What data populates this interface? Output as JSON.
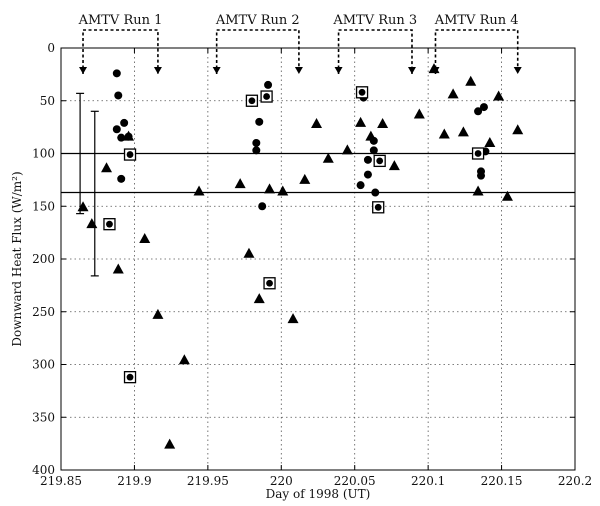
{
  "chart_data": {
    "type": "scatter",
    "title": "",
    "xlabel": "Day of 1998 (UT)",
    "ylabel": "Downward Heat Flux (W/m²)",
    "xlim": [
      219.85,
      220.2
    ],
    "ylim": [
      0,
      400
    ],
    "y_inverted": true,
    "grid": true,
    "x_ticks": [
      "219.85",
      "219.9",
      "219.95",
      "220",
      "220.05",
      "220.1",
      "220.15",
      "220.2"
    ],
    "x_tick_values": [
      219.85,
      219.9,
      219.95,
      220.0,
      220.05,
      220.1,
      220.15,
      220.2
    ],
    "y_ticks": [
      "0",
      "50",
      "100",
      "150",
      "200",
      "250",
      "300",
      "350",
      "400"
    ],
    "y_tick_values": [
      0,
      50,
      100,
      150,
      200,
      250,
      300,
      350,
      400
    ],
    "reference_lines": [
      100,
      137
    ],
    "error_bars": [
      {
        "x": 219.863,
        "y_low": 43,
        "y_high": 157
      },
      {
        "x": 219.873,
        "y_low": 60,
        "y_high": 216
      }
    ],
    "runs": [
      {
        "label": "AMTV Run 1",
        "x_start": 219.865,
        "x_end": 219.916
      },
      {
        "label": "AMTV Run 2",
        "x_start": 219.956,
        "x_end": 220.012
      },
      {
        "label": "AMTV Run 3",
        "x_start": 220.039,
        "x_end": 220.089
      },
      {
        "label": "AMTV Run 4",
        "x_start": 220.105,
        "x_end": 220.161
      }
    ],
    "series": [
      {
        "marker": "triangle",
        "points": [
          [
            219.865,
            151
          ],
          [
            219.871,
            167
          ],
          [
            219.881,
            114
          ],
          [
            219.889,
            210
          ],
          [
            219.896,
            84
          ],
          [
            219.907,
            181
          ],
          [
            219.916,
            253
          ],
          [
            219.924,
            376
          ],
          [
            219.934,
            296
          ],
          [
            219.944,
            136
          ],
          [
            219.972,
            129
          ],
          [
            219.978,
            195
          ],
          [
            219.985,
            238
          ],
          [
            219.992,
            134
          ],
          [
            220.001,
            136
          ],
          [
            220.008,
            257
          ],
          [
            220.016,
            125
          ],
          [
            220.024,
            72
          ],
          [
            220.032,
            105
          ],
          [
            220.045,
            97
          ],
          [
            220.054,
            71
          ],
          [
            220.061,
            84
          ],
          [
            220.069,
            72
          ],
          [
            220.077,
            112
          ],
          [
            220.094,
            63
          ],
          [
            220.104,
            20
          ],
          [
            220.111,
            82
          ],
          [
            220.117,
            44
          ],
          [
            220.124,
            80
          ],
          [
            220.129,
            32
          ],
          [
            220.134,
            136
          ],
          [
            220.142,
            90
          ],
          [
            220.148,
            46
          ],
          [
            220.154,
            141
          ],
          [
            220.161,
            78
          ]
        ]
      },
      {
        "marker": "circle",
        "points": [
          [
            219.888,
            24
          ],
          [
            219.889,
            45
          ],
          [
            219.888,
            77
          ],
          [
            219.891,
            85
          ],
          [
            219.893,
            71
          ],
          [
            219.896,
            84
          ],
          [
            219.891,
            124
          ],
          [
            219.98,
            52
          ],
          [
            219.985,
            70
          ],
          [
            219.983,
            90
          ],
          [
            219.983,
            97
          ],
          [
            219.987,
            150
          ],
          [
            219.991,
            35
          ],
          [
            220.056,
            47
          ],
          [
            220.059,
            106
          ],
          [
            220.054,
            130
          ],
          [
            220.059,
            120
          ],
          [
            220.063,
            88
          ],
          [
            220.063,
            97
          ],
          [
            220.066,
            106
          ],
          [
            220.064,
            137
          ],
          [
            220.134,
            60
          ],
          [
            220.138,
            56
          ],
          [
            220.136,
            117
          ],
          [
            220.136,
            121
          ],
          [
            220.139,
            98
          ]
        ]
      },
      {
        "marker": "boxed-circle",
        "points": [
          [
            219.883,
            167
          ],
          [
            219.897,
            101
          ],
          [
            219.897,
            312
          ],
          [
            219.98,
            50
          ],
          [
            219.99,
            46
          ],
          [
            219.992,
            223
          ],
          [
            220.055,
            42
          ],
          [
            220.067,
            107
          ],
          [
            220.066,
            151
          ],
          [
            220.134,
            100
          ]
        ]
      }
    ]
  }
}
